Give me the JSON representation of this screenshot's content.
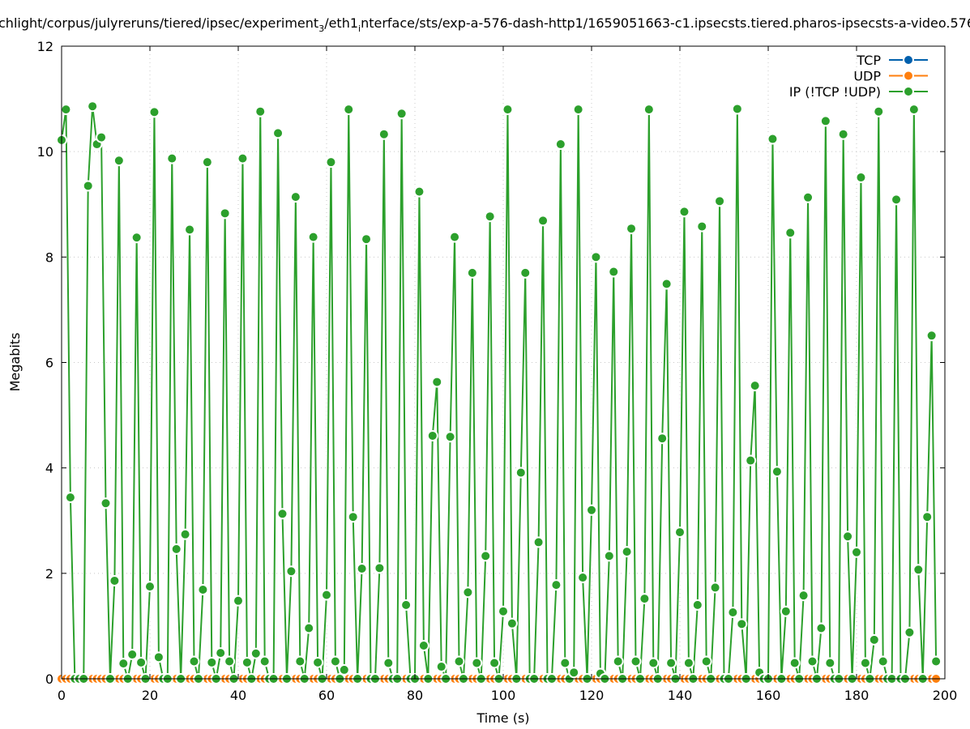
{
  "chart_data": {
    "type": "line",
    "title_parts": [
      {
        "text": "chlight/corpus/julyreruns/tiered/ipsec/experiment",
        "sub": false
      },
      {
        "text": "3",
        "sub": true
      },
      {
        "text": "/eth1",
        "sub": false
      },
      {
        "text": "i",
        "sub": true
      },
      {
        "text": "nterface/sts/exp-a-576-dash-http1/1659051663-c1.ipsecsts.tiered.pharos-ipsecsts-a-video.576",
        "sub": false
      }
    ],
    "xlabel": "Time (s)",
    "ylabel": "Megabits",
    "xlim": [
      0,
      200
    ],
    "ylim": [
      0,
      12
    ],
    "xticks": [
      "0",
      "20",
      "40",
      "60",
      "80",
      "100",
      "120",
      "140",
      "160",
      "180",
      "200"
    ],
    "yticks": [
      "0",
      "2",
      "4",
      "6",
      "8",
      "10",
      "12"
    ],
    "grid": true,
    "legend_position": "top-right",
    "markers": true,
    "series": [
      {
        "name": "TCP",
        "color": "#0060ad",
        "x_start": 0,
        "x_step": 1,
        "values": "zeros-199"
      },
      {
        "name": "UDP",
        "color": "#ff7f0e",
        "x_start": 0,
        "x_step": 1,
        "values": "zeros-199"
      },
      {
        "name": "IP (!TCP  !UDP)",
        "color": "#2ca02c",
        "x_start": 0,
        "x_step": 1,
        "values": [
          10.22,
          10.8,
          3.44,
          0,
          0,
          0,
          9.35,
          10.86,
          10.14,
          10.27,
          3.33,
          0,
          1.86,
          9.83,
          0.29,
          0,
          0.46,
          8.37,
          0.31,
          0,
          1.75,
          10.75,
          0.41,
          0,
          0,
          9.87,
          2.46,
          0,
          2.74,
          8.52,
          0.33,
          0,
          1.69,
          9.8,
          0.31,
          0,
          0.49,
          8.83,
          0.33,
          0,
          1.48,
          9.87,
          0.31,
          0,
          0.48,
          10.76,
          0.33,
          0,
          0,
          10.35,
          3.13,
          0,
          2.04,
          9.14,
          0.33,
          0,
          0.96,
          8.38,
          0.31,
          0,
          1.59,
          9.8,
          0.33,
          0,
          0.17,
          10.8,
          3.07,
          0,
          2.09,
          8.34,
          0,
          0,
          2.1,
          10.33,
          0.3,
          0,
          0,
          10.72,
          1.4,
          0,
          0,
          9.24,
          0.63,
          0,
          4.61,
          5.63,
          0.23,
          0,
          4.59,
          8.38,
          0.33,
          0,
          1.64,
          7.7,
          0.3,
          0,
          2.33,
          8.77,
          0.3,
          0,
          1.28,
          10.8,
          1.05,
          0,
          3.91,
          7.7,
          0,
          0,
          2.59,
          8.69,
          0,
          0,
          1.78,
          10.14,
          0.3,
          0,
          0.12,
          10.8,
          1.92,
          0,
          3.2,
          8.0,
          0.1,
          0,
          2.33,
          7.72,
          0.33,
          0,
          2.41,
          8.54,
          0.33,
          0,
          1.52,
          10.8,
          0.3,
          0,
          4.56,
          7.49,
          0.3,
          0,
          2.78,
          8.86,
          0.3,
          0,
          1.4,
          8.58,
          0.33,
          0,
          1.73,
          9.06,
          0,
          0,
          1.26,
          10.81,
          1.04,
          0,
          4.14,
          5.56,
          0.12,
          0,
          0,
          10.24,
          3.93,
          0,
          1.28,
          8.46,
          0.3,
          0,
          1.58,
          9.13,
          0.33,
          0,
          0.96,
          10.58,
          0.3,
          0,
          0,
          10.33,
          2.7,
          0,
          2.4,
          9.51,
          0.3,
          0,
          0.74,
          10.76,
          0.33,
          0,
          0,
          9.09,
          0,
          0,
          0.88,
          10.8,
          2.07,
          0,
          3.07,
          6.51,
          0.33
        ]
      }
    ]
  }
}
